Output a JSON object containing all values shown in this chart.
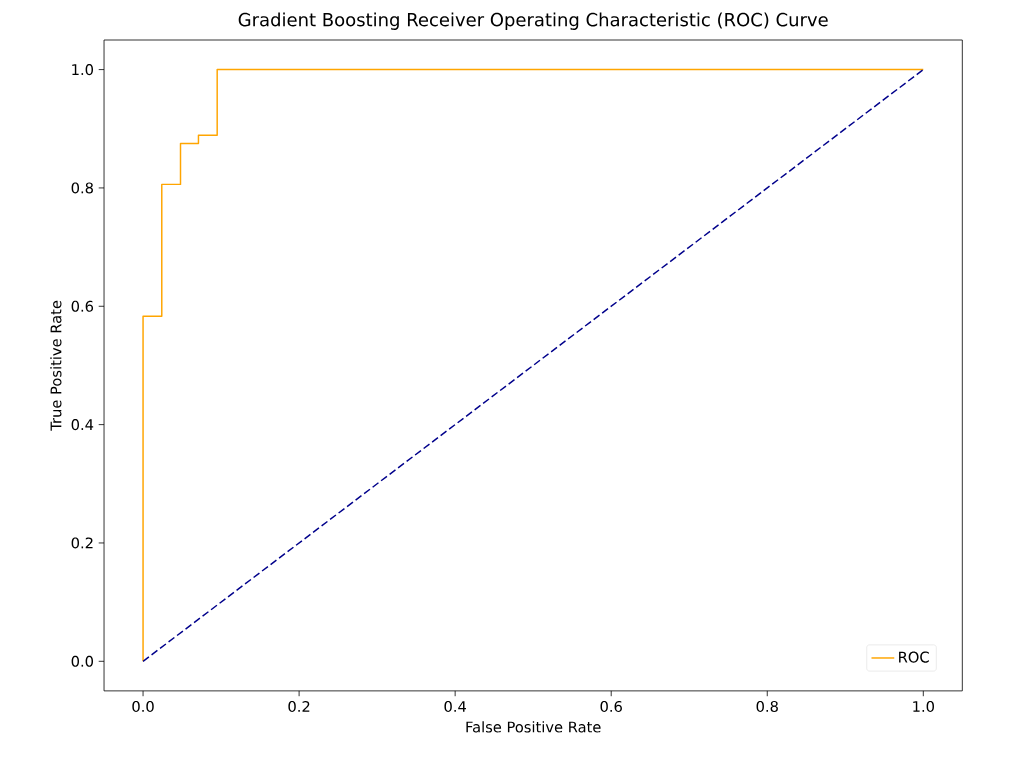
{
  "chart_data": {
    "type": "line",
    "title": "Gradient Boosting Receiver Operating Characteristic (ROC) Curve",
    "xlabel": "False Positive Rate",
    "ylabel": "True Positive Rate",
    "series": [
      {
        "name": "ROC",
        "type": "step",
        "color": "#ffa500",
        "line_style": "solid",
        "x": [
          0,
          0,
          0.024,
          0.048,
          0.071,
          0.095,
          1
        ],
        "values": [
          0,
          0.583,
          0.806,
          0.875,
          0.889,
          1,
          1
        ]
      },
      {
        "color": "#00008b",
        "line_style": "dashed",
        "x": [
          0,
          1
        ],
        "values": [
          0,
          1
        ]
      }
    ],
    "xlim": [
      -0.05,
      1.05
    ],
    "ylim": [
      -0.05,
      1.05
    ],
    "xticks": [
      {
        "value": 0,
        "label": "0.0"
      },
      {
        "value": 0.2,
        "label": "0.2"
      },
      {
        "value": 0.4,
        "label": "0.4"
      },
      {
        "value": 0.6,
        "label": "0.6"
      },
      {
        "value": 0.8,
        "label": "0.8"
      },
      {
        "value": 1,
        "label": "1.0"
      }
    ],
    "yticks": [
      {
        "value": 0,
        "label": "0.0"
      },
      {
        "value": 0.2,
        "label": "0.2"
      },
      {
        "value": 0.4,
        "label": "0.4"
      },
      {
        "value": 0.6,
        "label": "0.6"
      },
      {
        "value": 0.8,
        "label": "0.8"
      },
      {
        "value": 1,
        "label": "1.0"
      }
    ],
    "grid": false,
    "legend": "bottom right",
    "marker": "none"
  }
}
